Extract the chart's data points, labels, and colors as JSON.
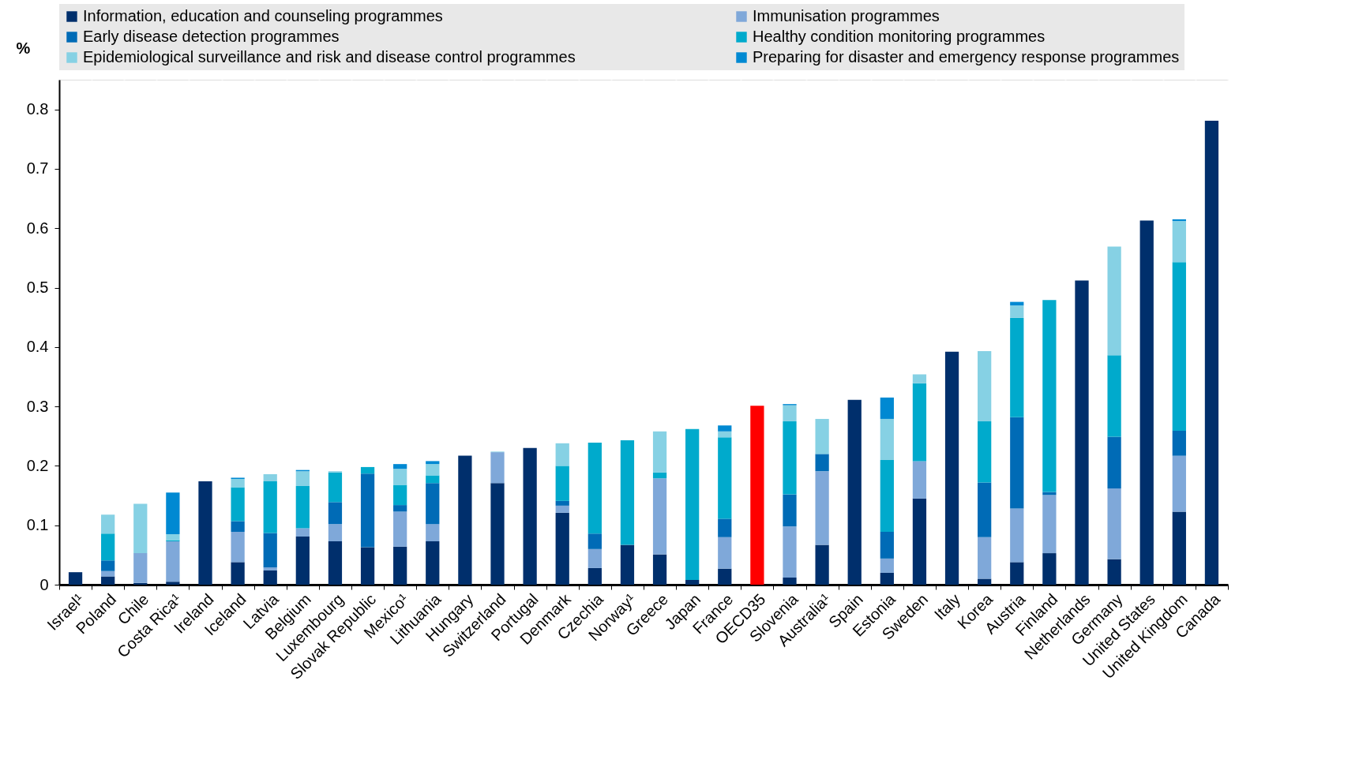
{
  "chart_data": {
    "type": "bar",
    "stacked": true,
    "ylabel": "%",
    "categories": [
      "Israel¹",
      "Poland",
      "Chile",
      "Costa Rica¹",
      "Ireland",
      "Iceland",
      "Latvia",
      "Belgium",
      "Luxembourg",
      "Slovak Republic",
      "Mexico¹",
      "Lithuania",
      "Hungary",
      "Switzerland",
      "Portugal",
      "Denmark",
      "Czechia",
      "Norway¹",
      "Greece",
      "Japan",
      "France",
      "OECD35",
      "Slovenia",
      "Australia¹",
      "Spain",
      "Estonia",
      "Sweden",
      "Italy",
      "Korea",
      "Austria",
      "Finland",
      "Netherlands",
      "Germany",
      "United States",
      "United Kingdom",
      "Canada"
    ],
    "series": [
      {
        "name": "Information, education and counseling programmes",
        "color": "#002f6c",
        "values": [
          0.021,
          0.014,
          0.003,
          0.005,
          0.174,
          0.038,
          0.024,
          0.081,
          0.073,
          0.063,
          0.064,
          0.073,
          0.217,
          0.171,
          0.23,
          0.121,
          0.028,
          0.067,
          0.051,
          0.008,
          0.027,
          0.301,
          0.012,
          0.067,
          0.311,
          0.02,
          0.145,
          0.392,
          0.01,
          0.038,
          0.053,
          0.512,
          0.043,
          0.613,
          0.123,
          0.781
        ],
        "colors": [
          "#002f6c",
          "#002f6c",
          "#002f6c",
          "#002f6c",
          "#002f6c",
          "#002f6c",
          "#002f6c",
          "#002f6c",
          "#002f6c",
          "#002f6c",
          "#002f6c",
          "#002f6c",
          "#002f6c",
          "#002f6c",
          "#002f6c",
          "#002f6c",
          "#002f6c",
          "#002f6c",
          "#002f6c",
          "#002f6c",
          "#002f6c",
          "#ff0000",
          "#002f6c",
          "#002f6c",
          "#002f6c",
          "#002f6c",
          "#002f6c",
          "#002f6c",
          "#002f6c",
          "#002f6c",
          "#002f6c",
          "#002f6c",
          "#002f6c",
          "#002f6c",
          "#002f6c",
          "#002f6c"
        ]
      },
      {
        "name": "Immunisation programmes",
        "color": "#7fa8d9",
        "values": [
          null,
          0.009,
          0.05,
          0.068,
          null,
          0.051,
          0.005,
          0.014,
          0.029,
          null,
          0.059,
          0.029,
          null,
          0.052,
          null,
          0.012,
          0.032,
          null,
          0.128,
          null,
          0.053,
          null,
          0.086,
          0.124,
          null,
          0.024,
          0.063,
          null,
          0.07,
          0.09,
          0.098,
          null,
          0.119,
          null,
          0.094,
          null
        ]
      },
      {
        "name": "Early disease detection programmes",
        "color": "#006bb6",
        "values": [
          null,
          0.018,
          null,
          null,
          null,
          0.018,
          0.058,
          null,
          0.037,
          0.124,
          0.011,
          0.069,
          null,
          null,
          null,
          0.008,
          0.026,
          null,
          null,
          null,
          0.031,
          null,
          0.054,
          0.029,
          null,
          0.045,
          null,
          null,
          0.092,
          0.154,
          0.005,
          null,
          0.087,
          null,
          0.042,
          null
        ]
      },
      {
        "name": "Healthy condition monitoring programmes",
        "color": "#00aacc",
        "values": [
          null,
          0.045,
          null,
          0.002,
          null,
          0.057,
          0.087,
          0.071,
          0.05,
          0.011,
          0.034,
          0.013,
          null,
          null,
          null,
          0.059,
          0.153,
          0.176,
          0.01,
          0.254,
          0.137,
          null,
          0.123,
          null,
          null,
          0.121,
          0.131,
          null,
          0.103,
          0.167,
          0.323,
          null,
          0.137,
          null,
          0.284,
          null
        ]
      },
      {
        "name": "Epidemiological surveillance and risk and disease control programmes",
        "color": "#86d1e4",
        "values": [
          null,
          0.032,
          0.083,
          0.01,
          null,
          0.014,
          0.012,
          0.025,
          0.002,
          null,
          0.027,
          0.019,
          null,
          0.001,
          null,
          0.038,
          null,
          null,
          0.069,
          null,
          0.01,
          null,
          0.027,
          0.059,
          null,
          0.069,
          0.015,
          null,
          0.118,
          0.021,
          null,
          null,
          0.183,
          null,
          0.069,
          null
        ]
      },
      {
        "name": "Preparing for disaster and emergency response programmes",
        "color": "#0089d2",
        "values": [
          null,
          null,
          null,
          0.07,
          null,
          0.002,
          null,
          0.002,
          null,
          null,
          0.008,
          0.005,
          null,
          null,
          null,
          null,
          null,
          null,
          null,
          null,
          0.01,
          null,
          0.002,
          null,
          null,
          0.036,
          null,
          null,
          null,
          0.006,
          null,
          null,
          null,
          null,
          0.003,
          null
        ]
      }
    ],
    "ylim": [
      0,
      0.85
    ],
    "yticks": [
      0,
      0.1,
      0.2,
      0.3,
      0.4,
      0.5,
      0.6,
      0.7,
      0.8
    ],
    "grid": true,
    "legend": "top"
  }
}
